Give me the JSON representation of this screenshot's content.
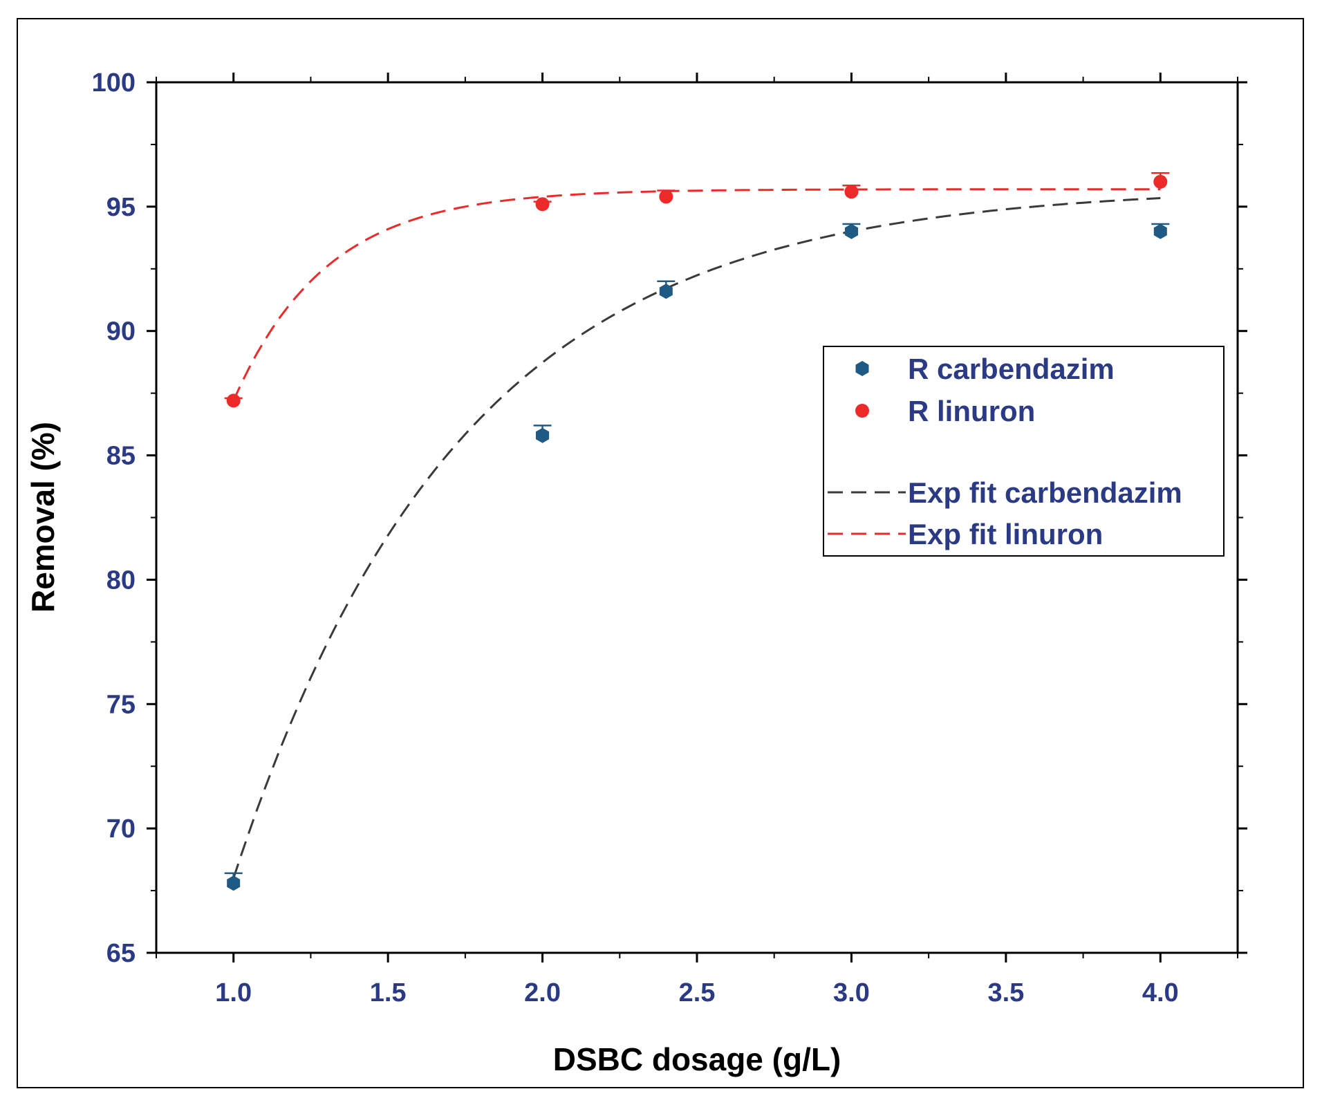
{
  "colors": {
    "label": "#2b3a84",
    "carbendazim": "#1f5a85",
    "linuron": "#ec2a2a",
    "fit_carbendazim": "#3a3a3a",
    "fit_linuron": "#ec2a2a"
  },
  "chart_data": {
    "type": "scatter",
    "xlabel": "DSBC dosage (g/L)",
    "ylabel": "Removal (%)",
    "xlim": [
      0.75,
      4.25
    ],
    "ylim": [
      65,
      100
    ],
    "xticks": [
      1.0,
      1.5,
      2.0,
      2.5,
      3.0,
      3.5,
      4.0
    ],
    "xtick_labels": [
      "1.0",
      "1.5",
      "2.0",
      "2.5",
      "3.0",
      "3.5",
      "4.0"
    ],
    "yticks": [
      65,
      70,
      75,
      80,
      85,
      90,
      95,
      100
    ],
    "ytick_labels": [
      "65",
      "70",
      "75",
      "80",
      "85",
      "90",
      "95",
      "100"
    ],
    "series": [
      {
        "name": "R carbendazim",
        "kind": "points",
        "marker": "hexagon",
        "x": [
          1.0,
          2.0,
          2.4,
          3.0,
          4.0
        ],
        "y": [
          67.8,
          85.8,
          91.6,
          94.0,
          94.0
        ],
        "err": [
          0.4,
          0.4,
          0.4,
          0.3,
          0.3
        ]
      },
      {
        "name": "R linuron",
        "kind": "points",
        "marker": "circle",
        "x": [
          1.0,
          2.0,
          2.4,
          3.0,
          4.0
        ],
        "y": [
          87.2,
          95.1,
          95.4,
          95.6,
          96.0
        ],
        "err": [
          0.1,
          0.1,
          0.25,
          0.25,
          0.35
        ]
      },
      {
        "name": "Exp fit carbendazim",
        "kind": "fit",
        "model": "y = y0 - A*exp(-(x-1)/t)",
        "params": {
          "y0": 95.8,
          "A": 27.8,
          "t": 0.73
        },
        "x_range": [
          1.0,
          4.0
        ]
      },
      {
        "name": "Exp fit linuron",
        "kind": "fit",
        "model": "y = y0 - A*exp(-(x-1)/t)",
        "params": {
          "y0": 95.7,
          "A": 8.5,
          "t": 0.3
        },
        "x_range": [
          1.0,
          4.0
        ]
      }
    ],
    "legend_position": "center-right"
  }
}
